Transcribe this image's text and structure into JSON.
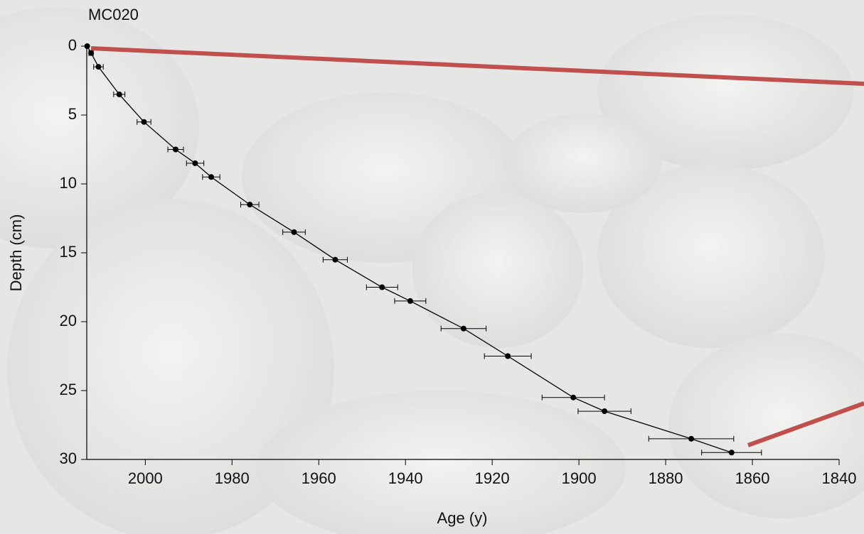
{
  "chart_data": {
    "type": "scatter",
    "title": "MC020",
    "xlabel": "Age (y)",
    "ylabel": "Depth (cm)",
    "x": [
      2013.4,
      2012.5,
      2010.8,
      2006.0,
      2000.3,
      1993.0,
      1988.5,
      1984.8,
      1975.9,
      1965.7,
      1956.2,
      1945.4,
      1938.9,
      1926.6,
      1916.4,
      1901.3,
      1894.1,
      1874.1,
      1864.8
    ],
    "y": [
      0,
      0.5,
      1.5,
      3.5,
      5.5,
      7.5,
      8.5,
      9.5,
      11.5,
      13.5,
      15.5,
      17.5,
      18.5,
      20.5,
      22.5,
      25.5,
      26.5,
      28.5,
      29.5
    ],
    "xerr": [
      0,
      0.5,
      1.1,
      1.3,
      1.6,
      1.8,
      2.0,
      2.0,
      2.1,
      2.6,
      2.8,
      3.6,
      3.6,
      5.2,
      5.4,
      7.2,
      6.1,
      9.8,
      6.9
    ],
    "color": "#000000",
    "xlim": [
      2013.5,
      1840
    ],
    "xticks": [
      2000,
      1980,
      1960,
      1940,
      1920,
      1900,
      1880,
      1860,
      1840
    ],
    "ylim": [
      0,
      30
    ],
    "yticks": [
      0,
      5,
      10,
      15,
      20,
      25,
      30
    ]
  }
}
